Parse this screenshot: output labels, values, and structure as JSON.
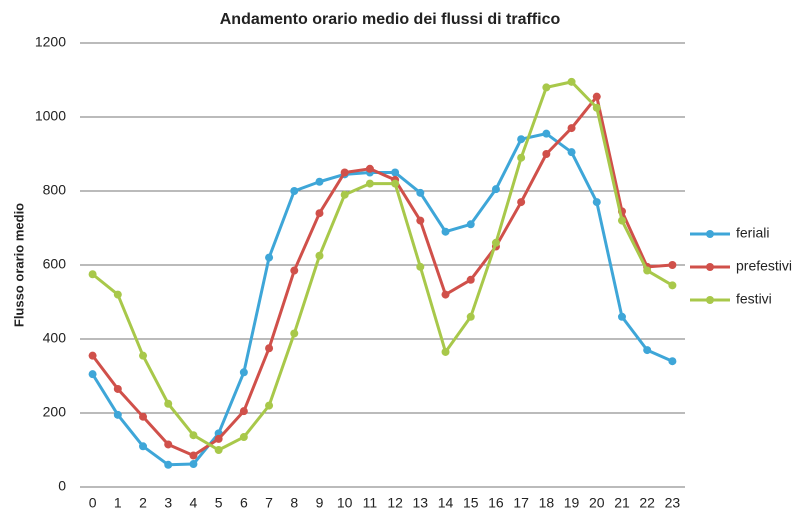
{
  "chart_data": {
    "type": "line",
    "title": "Andamento orario medio dei flussi di traffico",
    "y_label": "Flusso orario medio",
    "categories": [
      "0",
      "1",
      "2",
      "3",
      "4",
      "5",
      "6",
      "7",
      "8",
      "9",
      "10",
      "11",
      "12",
      "13",
      "14",
      "15",
      "16",
      "17",
      "18",
      "19",
      "20",
      "21",
      "22",
      "23"
    ],
    "series": [
      {
        "name": "feriali",
        "color": "#3ea6d8",
        "values": [
          305,
          195,
          110,
          60,
          62,
          145,
          310,
          620,
          800,
          825,
          845,
          850,
          850,
          795,
          690,
          710,
          805,
          940,
          955,
          905,
          770,
          460,
          370,
          340
        ]
      },
      {
        "name": "prefestivi",
        "color": "#d0504a",
        "values": [
          355,
          265,
          190,
          115,
          85,
          130,
          205,
          375,
          585,
          740,
          850,
          860,
          830,
          720,
          520,
          560,
          650,
          770,
          900,
          970,
          1055,
          745,
          595,
          600
        ]
      },
      {
        "name": "festivi",
        "color": "#a8c84a",
        "values": [
          575,
          520,
          355,
          225,
          140,
          100,
          135,
          220,
          415,
          625,
          790,
          820,
          820,
          595,
          365,
          460,
          660,
          890,
          1080,
          1095,
          1025,
          720,
          585,
          545
        ]
      }
    ],
    "ylim": [
      0,
      1200
    ],
    "yticks": [
      0,
      200,
      400,
      600,
      800,
      1000,
      1200
    ],
    "grid": true,
    "legend": "right"
  }
}
